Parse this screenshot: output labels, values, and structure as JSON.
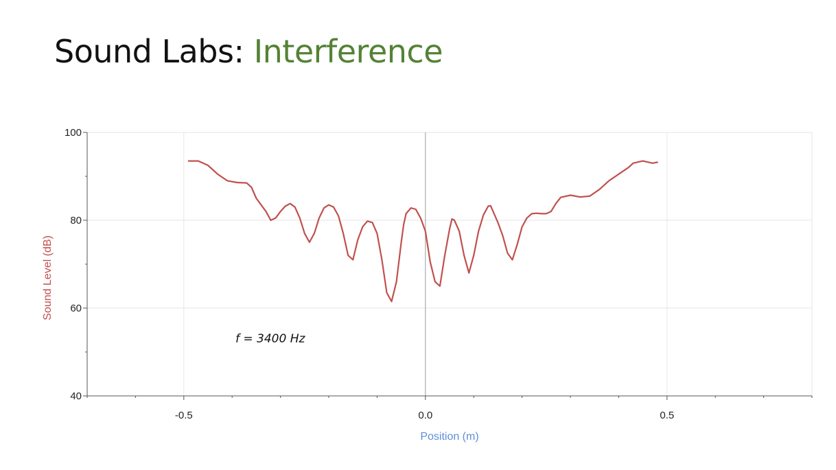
{
  "slide": {
    "title_prefix": "Sound Labs: ",
    "title_accent": "Interference"
  },
  "colors": {
    "title_accent": "#548235",
    "series": "#c0504d",
    "xlabel": "#5b8fd9",
    "ylabel": "#c0504d",
    "grid": "#e6e6e6",
    "axis": "#555555"
  },
  "chart_data": {
    "type": "line",
    "xlabel": "Position (m)",
    "ylabel": "Sound Level (dB)",
    "xlim": [
      -0.7,
      0.8
    ],
    "ylim": [
      40,
      100
    ],
    "xticks": [
      -0.5,
      0.0,
      0.5
    ],
    "xtick_labels": [
      "-0.5",
      "0.0",
      "0.5"
    ],
    "yticks": [
      40,
      60,
      80,
      100
    ],
    "ytick_labels": [
      "40",
      "60",
      "80",
      "100"
    ],
    "grid": true,
    "annotation": "f = 3400 Hz",
    "series": [
      {
        "x": [
          -0.49,
          -0.47,
          -0.45,
          -0.43,
          -0.41,
          -0.39,
          -0.37,
          -0.36,
          -0.35,
          -0.33,
          -0.32,
          -0.31,
          -0.3,
          -0.29,
          -0.28,
          -0.27,
          -0.26,
          -0.25,
          -0.24,
          -0.23,
          -0.22,
          -0.21,
          -0.2,
          -0.19,
          -0.18,
          -0.17,
          -0.16,
          -0.15,
          -0.14,
          -0.13,
          -0.12,
          -0.11,
          -0.1,
          -0.09,
          -0.08,
          -0.07,
          -0.06,
          -0.05,
          -0.045,
          -0.04,
          -0.03,
          -0.02,
          -0.01,
          0.0,
          0.01,
          0.02,
          0.03,
          0.04,
          0.05,
          0.055,
          0.06,
          0.07,
          0.08,
          0.09,
          0.1,
          0.11,
          0.12,
          0.13,
          0.135,
          0.14,
          0.15,
          0.16,
          0.17,
          0.18,
          0.19,
          0.2,
          0.21,
          0.22,
          0.23,
          0.24,
          0.25,
          0.26,
          0.27,
          0.28,
          0.3,
          0.32,
          0.34,
          0.36,
          0.38,
          0.4,
          0.42,
          0.43,
          0.45,
          0.47,
          0.48
        ],
        "y": [
          93.5,
          93.5,
          92.5,
          90.5,
          89.0,
          88.6,
          88.5,
          87.5,
          85.0,
          82.0,
          80.0,
          80.5,
          82.0,
          83.2,
          83.8,
          83.0,
          80.5,
          77.0,
          75.0,
          77.0,
          80.5,
          82.8,
          83.5,
          83.0,
          81.0,
          77.0,
          72.0,
          71.0,
          75.5,
          78.5,
          79.8,
          79.5,
          77.0,
          71.0,
          63.5,
          61.5,
          66.0,
          75.0,
          79.0,
          81.5,
          82.8,
          82.5,
          80.5,
          77.5,
          70.5,
          66.0,
          65.0,
          72.0,
          78.0,
          80.3,
          80.0,
          77.5,
          72.0,
          68.0,
          72.0,
          77.5,
          81.2,
          83.2,
          83.3,
          82.0,
          79.5,
          76.5,
          72.5,
          71.0,
          74.5,
          78.5,
          80.5,
          81.5,
          81.6,
          81.5,
          81.5,
          82.0,
          83.8,
          85.2,
          85.7,
          85.3,
          85.5,
          87.0,
          89.0,
          90.5,
          92.0,
          93.0,
          93.5,
          93.0,
          93.2
        ]
      }
    ]
  }
}
